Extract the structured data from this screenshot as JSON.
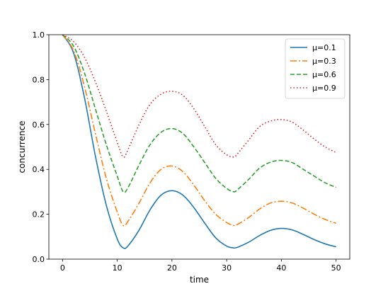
{
  "chart_data": {
    "type": "line",
    "xlabel": "time",
    "ylabel": "concurrence",
    "xlim": [
      -2.5,
      52.5
    ],
    "ylim": [
      0.0,
      1.0
    ],
    "xticks": [
      "0",
      "10",
      "20",
      "30",
      "40",
      "50"
    ],
    "yticks": [
      "0.0",
      "0.2",
      "0.4",
      "0.6",
      "0.8",
      "1.0"
    ],
    "grid": false,
    "legend_position": "top-right",
    "series": [
      {
        "name": "μ=0.1",
        "color": "#1f77b4",
        "style": "solid",
        "x": [
          0,
          2,
          4,
          6,
          8,
          10,
          11.1,
          12,
          14,
          16,
          18,
          20,
          22,
          24,
          26,
          28,
          30,
          31.3,
          32,
          34,
          36,
          38,
          40,
          42,
          44,
          46,
          48,
          50
        ],
        "y": [
          1.0,
          0.92,
          0.72,
          0.46,
          0.24,
          0.09,
          0.05,
          0.06,
          0.13,
          0.22,
          0.285,
          0.305,
          0.285,
          0.23,
          0.16,
          0.095,
          0.058,
          0.05,
          0.053,
          0.075,
          0.105,
          0.128,
          0.137,
          0.13,
          0.11,
          0.087,
          0.068,
          0.055
        ]
      },
      {
        "name": "μ=0.3",
        "color": "#ff7f0e",
        "style": "dashdot",
        "x": [
          0,
          2,
          4,
          6,
          8,
          10,
          11.1,
          12,
          14,
          16,
          18,
          20,
          22,
          24,
          26,
          28,
          30,
          31.3,
          32,
          34,
          36,
          38,
          40,
          42,
          44,
          46,
          48,
          50
        ],
        "y": [
          1.0,
          0.93,
          0.77,
          0.56,
          0.36,
          0.21,
          0.15,
          0.17,
          0.25,
          0.34,
          0.4,
          0.415,
          0.39,
          0.33,
          0.26,
          0.2,
          0.163,
          0.15,
          0.155,
          0.185,
          0.223,
          0.25,
          0.258,
          0.25,
          0.227,
          0.2,
          0.177,
          0.16
        ]
      },
      {
        "name": "μ=0.6",
        "color": "#2ca02c",
        "style": "dashed",
        "x": [
          0,
          2,
          4,
          6,
          8,
          10,
          11.1,
          12,
          14,
          16,
          18,
          20,
          22,
          24,
          26,
          28,
          30,
          31.3,
          32,
          34,
          36,
          38,
          40,
          42,
          44,
          46,
          48,
          50
        ],
        "y": [
          1.0,
          0.95,
          0.83,
          0.67,
          0.51,
          0.37,
          0.3,
          0.32,
          0.42,
          0.51,
          0.565,
          0.582,
          0.56,
          0.5,
          0.43,
          0.36,
          0.315,
          0.3,
          0.31,
          0.355,
          0.405,
          0.432,
          0.44,
          0.43,
          0.4,
          0.37,
          0.34,
          0.32
        ]
      },
      {
        "name": "μ=0.9",
        "color": "#d62728",
        "style": "dotted",
        "x": [
          0,
          2,
          4,
          6,
          8,
          10,
          11.1,
          12,
          14,
          16,
          18,
          20,
          22,
          24,
          26,
          28,
          30,
          31.3,
          32,
          34,
          36,
          38,
          40,
          42,
          44,
          46,
          48,
          50
        ],
        "y": [
          1.0,
          0.97,
          0.9,
          0.79,
          0.66,
          0.52,
          0.455,
          0.49,
          0.6,
          0.69,
          0.735,
          0.748,
          0.73,
          0.67,
          0.59,
          0.51,
          0.465,
          0.455,
          0.47,
          0.53,
          0.59,
          0.615,
          0.622,
          0.61,
          0.575,
          0.535,
          0.5,
          0.475
        ]
      }
    ]
  }
}
